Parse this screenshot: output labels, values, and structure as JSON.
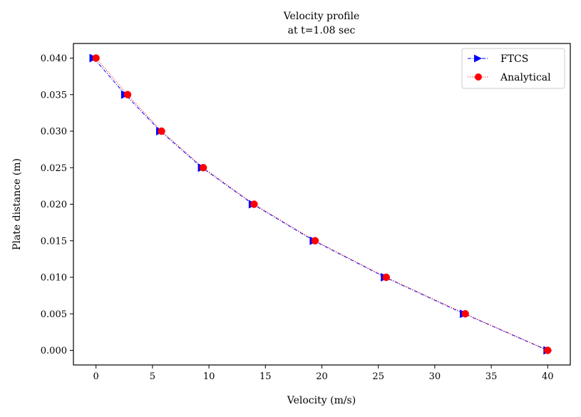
{
  "chart_data": {
    "type": "line",
    "title": "Velocity profile",
    "subtitle": "at t=1.08 sec",
    "xlabel": "Velocity (m/s)",
    "ylabel": "Plate distance (m)",
    "xlim": [
      -2,
      42
    ],
    "ylim": [
      -0.002,
      0.042
    ],
    "xticks": [
      0,
      5,
      10,
      15,
      20,
      25,
      30,
      35,
      40
    ],
    "xtick_labels": [
      "0",
      "5",
      "10",
      "15",
      "20",
      "25",
      "30",
      "35",
      "40"
    ],
    "yticks": [
      0.0,
      0.005,
      0.01,
      0.015,
      0.02,
      0.025,
      0.03,
      0.035,
      0.04
    ],
    "ytick_labels": [
      "0.000",
      "0.005",
      "0.010",
      "0.015",
      "0.020",
      "0.025",
      "0.030",
      "0.035",
      "0.040"
    ],
    "grid": false,
    "legend_position": "top-right",
    "series": [
      {
        "name": "FTCS",
        "color": "#0000ff",
        "marker": "triangle-right",
        "line_style": "dash-dot",
        "x": [
          40.0,
          32.6,
          25.6,
          19.3,
          13.9,
          9.4,
          5.7,
          2.6,
          -0.2
        ],
        "y": [
          0.0,
          0.005,
          0.01,
          0.015,
          0.02,
          0.025,
          0.03,
          0.035,
          0.04
        ]
      },
      {
        "name": "Analytical",
        "color": "#ff0000",
        "marker": "circle",
        "line_style": "dotted",
        "x": [
          40.0,
          32.7,
          25.7,
          19.4,
          14.0,
          9.5,
          5.8,
          2.8,
          0.0
        ],
        "y": [
          0.0,
          0.005,
          0.01,
          0.015,
          0.02,
          0.025,
          0.03,
          0.035,
          0.04
        ]
      }
    ]
  }
}
